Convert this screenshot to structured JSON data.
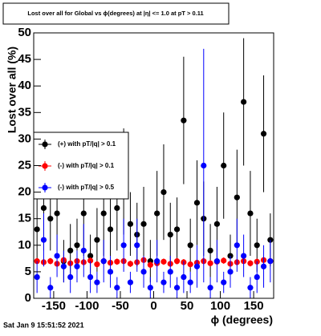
{
  "chart_data": {
    "type": "scatter",
    "title": "Lost over all for Global vs ϕ(degrees) at |η| <= 1.0 at pT > 0.11",
    "y_label": "Lost over all (%)",
    "x_label": "ϕ (degrees)",
    "timestamp": "Sat Jan  9 15:51:52 2021",
    "x": [
      -175,
      -165,
      -155,
      -145,
      -135,
      -125,
      -115,
      -105,
      -95,
      -85,
      -75,
      -65,
      -55,
      -45,
      -35,
      -25,
      -15,
      -5,
      5,
      15,
      25,
      35,
      45,
      55,
      65,
      75,
      85,
      95,
      105,
      115,
      125,
      135,
      145,
      155,
      165,
      175
    ],
    "series": [
      {
        "name": "(+) with pT/|q| > 0.1",
        "color": "#000000",
        "values": [
          13,
          17,
          15,
          16,
          7,
          9,
          10,
          16,
          8,
          11,
          16,
          13,
          17,
          22,
          14,
          12,
          14,
          7,
          16,
          20,
          12,
          13,
          33.5,
          10,
          18,
          15,
          9,
          14,
          25,
          8,
          19,
          37,
          16,
          10,
          31,
          11
        ],
        "errors": [
          6,
          8,
          6,
          7,
          4,
          5,
          5,
          8,
          4,
          6,
          8,
          6,
          8,
          10,
          6,
          6,
          7,
          4,
          8,
          9,
          6,
          6,
          12,
          5,
          8,
          7,
          5,
          7,
          10,
          4,
          9,
          12,
          8,
          5,
          11,
          5
        ]
      },
      {
        "name": "(-) with pT/|q| > 0.1",
        "color": "#ff0000",
        "values": [
          7,
          6.8,
          7,
          6.5,
          7.2,
          6.6,
          7,
          6.8,
          7.1,
          6.4,
          7,
          6.7,
          6.9,
          7,
          6.5,
          6.8,
          7.2,
          6.3,
          6.6,
          6.9,
          6.5,
          7,
          6.8,
          6.4,
          6.7,
          7,
          6.6,
          6.9,
          7.1,
          6.5,
          6.8,
          7,
          6.6,
          6.9,
          7.2,
          7
        ],
        "errors": [
          0.6,
          0.6,
          0.6,
          0.6,
          0.6,
          0.6,
          0.6,
          0.6,
          0.6,
          0.6,
          0.6,
          0.6,
          0.6,
          0.6,
          0.6,
          0.6,
          0.6,
          0.6,
          0.6,
          0.6,
          0.6,
          0.6,
          0.6,
          0.6,
          0.6,
          0.6,
          0.6,
          0.6,
          0.6,
          0.6,
          0.6,
          0.6,
          0.6,
          0.6,
          0.6,
          0.6
        ]
      },
      {
        "name": "(-) with pT/|q| > 0.5",
        "color": "#0000ff",
        "values": [
          4,
          11,
          2,
          8,
          6,
          4,
          6,
          9,
          4,
          3,
          7,
          5,
          2,
          10,
          3,
          10,
          5,
          2,
          7,
          3,
          5,
          2,
          4,
          3,
          6,
          25,
          2,
          7,
          3,
          5,
          10,
          8,
          2,
          4,
          6,
          7
        ],
        "errors": [
          3,
          5,
          2,
          4,
          3,
          3,
          3,
          5,
          3,
          2,
          4,
          3,
          2,
          5,
          2,
          5,
          3,
          2,
          4,
          2,
          3,
          2,
          3,
          2,
          4,
          22,
          2,
          4,
          2,
          3,
          5,
          4,
          2,
          3,
          4,
          4
        ]
      }
    ],
    "xlim": [
      -180,
      180
    ],
    "xticks": [
      -150,
      -100,
      -50,
      0,
      50,
      100,
      150
    ],
    "ylim": [
      0,
      50
    ],
    "yticks": [
      0,
      5,
      10,
      15,
      20,
      25,
      30,
      35,
      40,
      45,
      50
    ]
  }
}
